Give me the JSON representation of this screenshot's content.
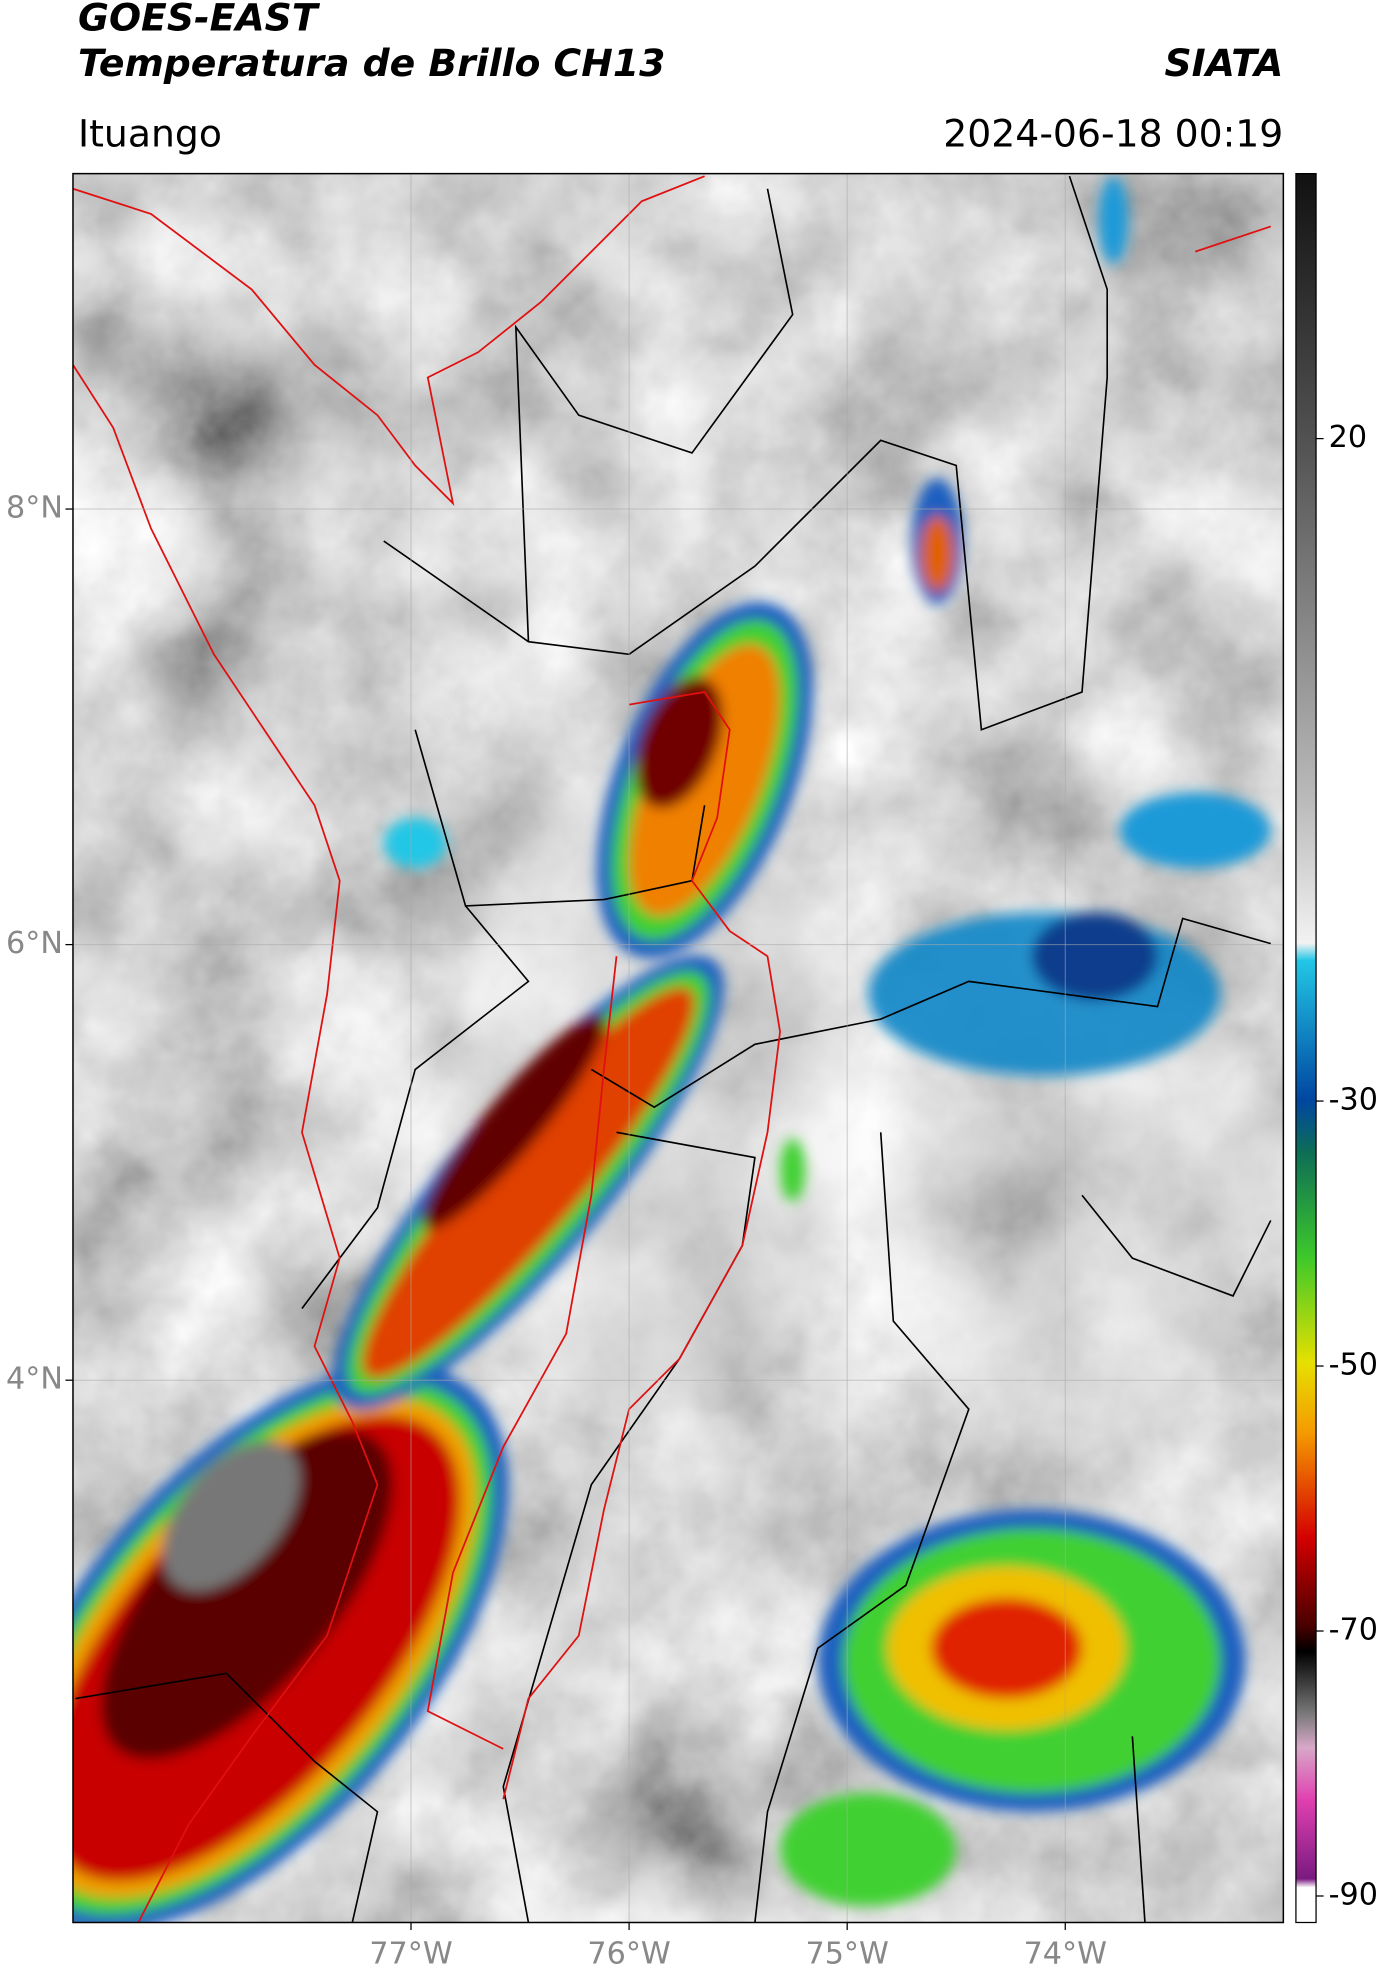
{
  "header": {
    "title": "GOES-EAST",
    "subtitle": "Temperatura de Brillo CH13",
    "source": "SIATA",
    "location": "Ituango",
    "datetime": "2024-06-18 00:19"
  },
  "map": {
    "xlim": [
      -78.55,
      -73.0
    ],
    "ylim": [
      1.51,
      9.54
    ],
    "lat_ticks": [
      {
        "value": 8,
        "label": "8°N"
      },
      {
        "value": 6,
        "label": "6°N"
      },
      {
        "value": 4,
        "label": "4°N"
      }
    ],
    "lon_ticks": [
      {
        "value": -77,
        "label": "77°W"
      },
      {
        "value": -76,
        "label": "76°W"
      },
      {
        "value": -75,
        "label": "75°W"
      },
      {
        "value": -74,
        "label": "74°W"
      }
    ]
  },
  "colorbar": {
    "lim": [
      -92,
      40
    ],
    "ticks": [
      20,
      -30,
      -50,
      -70,
      -90
    ]
  }
}
